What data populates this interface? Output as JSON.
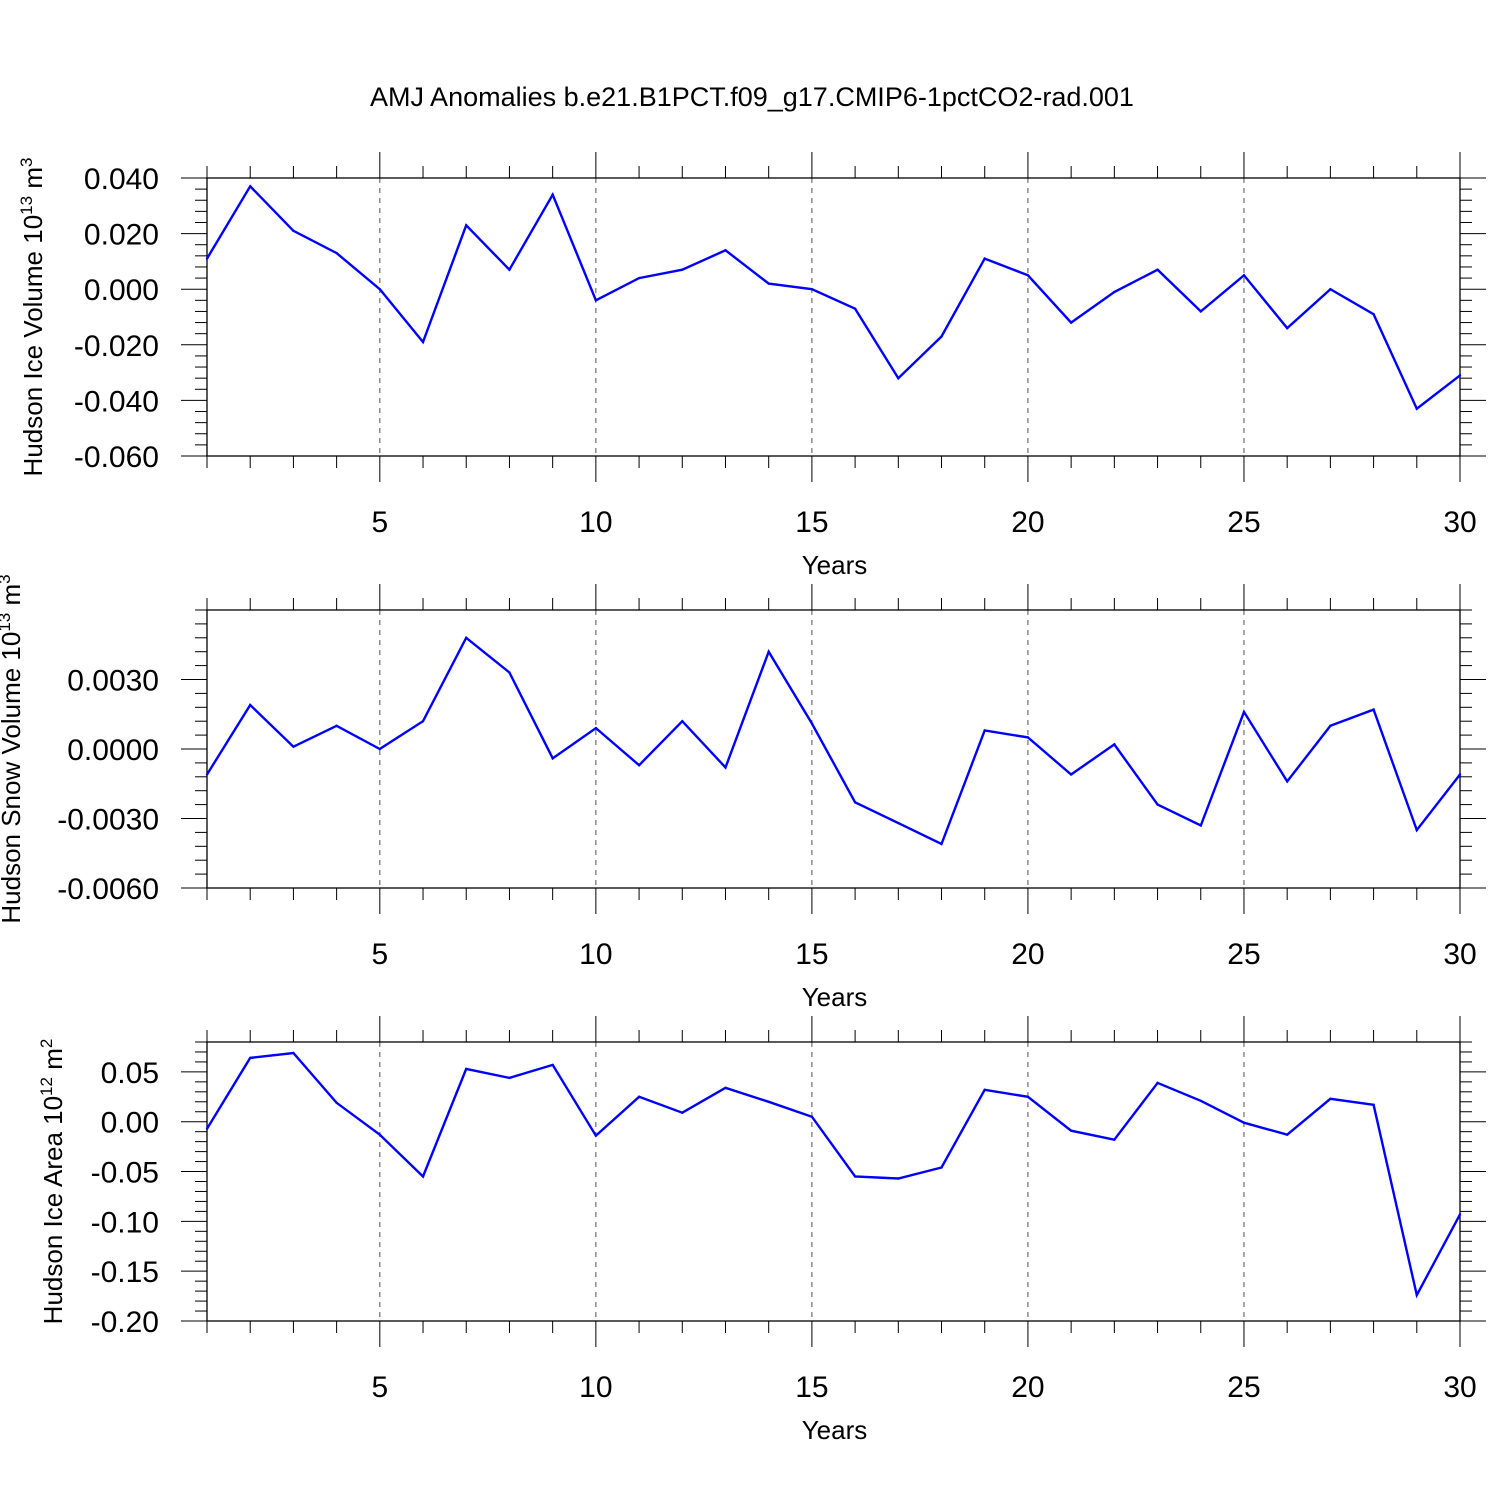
{
  "title": "AMJ Anomalies b.e21.B1PCT.f09_g17.CMIP6-1pctCO2-rad.001",
  "colors": {
    "line": "#0000ff",
    "axis": "#000000",
    "grid": "#555555"
  },
  "chart_data": [
    {
      "type": "line",
      "xlabel": "Years",
      "ylabel": {
        "text": "Hudson Ice Volume 10",
        "exp": "13",
        "unit": " m",
        "unit_exp": "3"
      },
      "xlim": [
        1,
        30
      ],
      "ylim": [
        -0.06,
        0.04
      ],
      "xticks": [
        5,
        10,
        15,
        20,
        25,
        30
      ],
      "xtick_labels": [
        "5",
        "10",
        "15",
        "20",
        "25",
        "30"
      ],
      "yticks": [
        -0.06,
        -0.04,
        -0.02,
        0.0,
        0.02,
        0.04
      ],
      "ytick_labels": [
        "-0.060",
        "-0.040",
        "-0.020",
        "0.000",
        "0.020",
        "0.040"
      ],
      "grid": "vertical-dashed",
      "x": [
        1,
        2,
        3,
        4,
        5,
        6,
        7,
        8,
        9,
        10,
        11,
        12,
        13,
        14,
        15,
        16,
        17,
        18,
        19,
        20,
        21,
        22,
        23,
        24,
        25,
        26,
        27,
        28,
        29,
        30
      ],
      "values": [
        0.011,
        0.037,
        0.021,
        0.013,
        0.0,
        -0.019,
        0.023,
        0.007,
        0.034,
        -0.004,
        0.004,
        0.007,
        0.014,
        0.002,
        0.0,
        -0.007,
        -0.032,
        -0.017,
        0.011,
        0.005,
        -0.012,
        -0.001,
        0.007,
        -0.008,
        0.005,
        -0.014,
        0.0,
        -0.009,
        -0.043,
        -0.031
      ]
    },
    {
      "type": "line",
      "xlabel": "Years",
      "ylabel": {
        "text": "Hudson Snow Volume 10",
        "exp": "13",
        "unit": " m",
        "unit_exp": "3"
      },
      "xlim": [
        1,
        30
      ],
      "ylim": [
        -0.006,
        0.006
      ],
      "xticks": [
        5,
        10,
        15,
        20,
        25,
        30
      ],
      "xtick_labels": [
        "5",
        "10",
        "15",
        "20",
        "25",
        "30"
      ],
      "yticks": [
        -0.006,
        -0.003,
        0.0,
        0.003
      ],
      "ytick_labels": [
        "-0.0060",
        "-0.0030",
        "0.0000",
        "0.0030"
      ],
      "grid": "vertical-dashed",
      "x": [
        1,
        2,
        3,
        4,
        5,
        6,
        7,
        8,
        9,
        10,
        11,
        12,
        13,
        14,
        15,
        16,
        17,
        18,
        19,
        20,
        21,
        22,
        23,
        24,
        25,
        26,
        27,
        28,
        29,
        30
      ],
      "values": [
        -0.0011,
        0.0019,
        0.0001,
        0.001,
        0.0,
        0.0012,
        0.0048,
        0.0033,
        -0.0004,
        0.0009,
        -0.0007,
        0.0012,
        -0.0008,
        0.0042,
        0.0011,
        -0.0023,
        -0.0032,
        -0.0041,
        0.0008,
        0.0005,
        -0.0011,
        0.0002,
        -0.0024,
        -0.0033,
        0.0016,
        -0.0014,
        0.001,
        0.0017,
        -0.0035,
        -0.0011
      ]
    },
    {
      "type": "line",
      "xlabel": "Years",
      "ylabel": {
        "text": "Hudson Ice Area 10",
        "exp": "12",
        "unit": " m",
        "unit_exp": "2"
      },
      "xlim": [
        1,
        30
      ],
      "ylim": [
        -0.2,
        0.08
      ],
      "xticks": [
        5,
        10,
        15,
        20,
        25,
        30
      ],
      "xtick_labels": [
        "5",
        "10",
        "15",
        "20",
        "25",
        "30"
      ],
      "yticks": [
        -0.2,
        -0.15,
        -0.1,
        -0.05,
        0.0,
        0.05
      ],
      "ytick_labels": [
        "-0.20",
        "-0.15",
        "-0.10",
        "-0.05",
        "0.00",
        "0.05"
      ],
      "grid": "vertical-dashed",
      "x": [
        1,
        2,
        3,
        4,
        5,
        6,
        7,
        8,
        9,
        10,
        11,
        12,
        13,
        14,
        15,
        16,
        17,
        18,
        19,
        20,
        21,
        22,
        23,
        24,
        25,
        26,
        27,
        28,
        29,
        30
      ],
      "values": [
        -0.007,
        0.064,
        0.069,
        0.019,
        -0.013,
        -0.055,
        0.053,
        0.044,
        0.057,
        -0.014,
        0.025,
        0.009,
        0.034,
        0.02,
        0.005,
        -0.055,
        -0.057,
        -0.046,
        0.032,
        0.025,
        -0.009,
        -0.018,
        0.039,
        0.021,
        -0.001,
        -0.013,
        0.023,
        0.017,
        -0.174,
        -0.093
      ]
    }
  ]
}
